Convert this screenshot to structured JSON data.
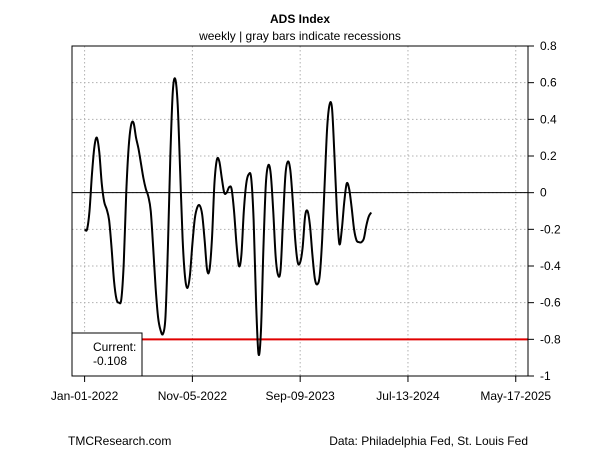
{
  "chart_data": {
    "type": "line",
    "title": "ADS Index",
    "subtitle": "weekly | gray bars indicate recessions",
    "xlabel": "",
    "ylabel": "",
    "x_tick_labels": [
      "Jan-01-2022",
      "Nov-05-2022",
      "Sep-09-2023",
      "Jul-13-2024",
      "May-17-2025"
    ],
    "x_tick_dates": [
      "2022-01-01",
      "2022-11-05",
      "2023-09-09",
      "2024-07-13",
      "2025-05-17"
    ],
    "xlim": [
      "2021-11-26",
      "2025-06-21"
    ],
    "ylim": [
      -1,
      0.8
    ],
    "y_ticks": [
      -1,
      -0.8,
      -0.6,
      -0.4,
      -0.2,
      0,
      0.2,
      0.4,
      0.6,
      0.8
    ],
    "y_tick_labels": [
      "-1",
      "-0.8",
      "-0.6",
      "-0.4",
      "-0.2",
      "0",
      "0.2",
      "0.4",
      "0.6",
      "0.8"
    ],
    "y_axis_side": "right",
    "grid": true,
    "reference_lines": [
      {
        "value": 0,
        "color": "#000000"
      },
      {
        "value": -0.8,
        "color": "#e00000"
      }
    ],
    "current_label": "Current:",
    "current_value": "-0.108",
    "series": [
      {
        "color": "#000000",
        "points": [
          [
            "2022-01-01",
            -0.2
          ],
          [
            "2022-01-08",
            -0.2
          ],
          [
            "2022-01-15",
            -0.1
          ],
          [
            "2022-01-22",
            0.1
          ],
          [
            "2022-01-29",
            0.25
          ],
          [
            "2022-02-05",
            0.3
          ],
          [
            "2022-02-12",
            0.22
          ],
          [
            "2022-02-19",
            0.05
          ],
          [
            "2022-02-26",
            -0.05
          ],
          [
            "2022-03-05",
            -0.09
          ],
          [
            "2022-03-12",
            -0.15
          ],
          [
            "2022-03-19",
            -0.3
          ],
          [
            "2022-03-26",
            -0.48
          ],
          [
            "2022-04-02",
            -0.58
          ],
          [
            "2022-04-09",
            -0.6
          ],
          [
            "2022-04-16",
            -0.58
          ],
          [
            "2022-04-23",
            -0.38
          ],
          [
            "2022-04-30",
            0.0
          ],
          [
            "2022-05-07",
            0.25
          ],
          [
            "2022-05-14",
            0.37
          ],
          [
            "2022-05-21",
            0.38
          ],
          [
            "2022-05-28",
            0.3
          ],
          [
            "2022-06-04",
            0.24
          ],
          [
            "2022-06-11",
            0.16
          ],
          [
            "2022-06-18",
            0.08
          ],
          [
            "2022-06-25",
            0.02
          ],
          [
            "2022-07-02",
            -0.02
          ],
          [
            "2022-07-09",
            -0.1
          ],
          [
            "2022-07-16",
            -0.3
          ],
          [
            "2022-07-23",
            -0.52
          ],
          [
            "2022-07-30",
            -0.68
          ],
          [
            "2022-08-06",
            -0.75
          ],
          [
            "2022-08-13",
            -0.77
          ],
          [
            "2022-08-20",
            -0.68
          ],
          [
            "2022-08-27",
            -0.3
          ],
          [
            "2022-09-03",
            0.2
          ],
          [
            "2022-09-10",
            0.55
          ],
          [
            "2022-09-17",
            0.62
          ],
          [
            "2022-09-24",
            0.48
          ],
          [
            "2022-10-01",
            0.12
          ],
          [
            "2022-10-08",
            -0.25
          ],
          [
            "2022-10-15",
            -0.46
          ],
          [
            "2022-10-22",
            -0.52
          ],
          [
            "2022-10-29",
            -0.45
          ],
          [
            "2022-11-05",
            -0.28
          ],
          [
            "2022-11-12",
            -0.14
          ],
          [
            "2022-11-19",
            -0.08
          ],
          [
            "2022-11-26",
            -0.07
          ],
          [
            "2022-12-03",
            -0.12
          ],
          [
            "2022-12-10",
            -0.26
          ],
          [
            "2022-12-17",
            -0.42
          ],
          [
            "2022-12-24",
            -0.42
          ],
          [
            "2022-12-31",
            -0.25
          ],
          [
            "2023-01-07",
            0.05
          ],
          [
            "2023-01-14",
            0.18
          ],
          [
            "2023-01-21",
            0.17
          ],
          [
            "2023-01-28",
            0.08
          ],
          [
            "2023-02-04",
            0.0
          ],
          [
            "2023-02-11",
            0.0
          ],
          [
            "2023-02-18",
            0.03
          ],
          [
            "2023-02-25",
            0.02
          ],
          [
            "2023-03-04",
            -0.1
          ],
          [
            "2023-03-11",
            -0.28
          ],
          [
            "2023-03-18",
            -0.4
          ],
          [
            "2023-03-25",
            -0.34
          ],
          [
            "2023-04-01",
            -0.1
          ],
          [
            "2023-04-08",
            0.05
          ],
          [
            "2023-04-15",
            0.1
          ],
          [
            "2023-04-22",
            0.08
          ],
          [
            "2023-04-29",
            -0.15
          ],
          [
            "2023-05-06",
            -0.6
          ],
          [
            "2023-05-13",
            -0.88
          ],
          [
            "2023-05-20",
            -0.75
          ],
          [
            "2023-05-27",
            -0.3
          ],
          [
            "2023-06-03",
            0.05
          ],
          [
            "2023-06-10",
            0.15
          ],
          [
            "2023-06-17",
            0.1
          ],
          [
            "2023-06-24",
            -0.1
          ],
          [
            "2023-07-01",
            -0.35
          ],
          [
            "2023-07-08",
            -0.45
          ],
          [
            "2023-07-15",
            -0.42
          ],
          [
            "2023-07-22",
            -0.15
          ],
          [
            "2023-07-29",
            0.1
          ],
          [
            "2023-08-05",
            0.17
          ],
          [
            "2023-08-12",
            0.12
          ],
          [
            "2023-08-19",
            -0.05
          ],
          [
            "2023-08-26",
            -0.26
          ],
          [
            "2023-09-02",
            -0.38
          ],
          [
            "2023-09-09",
            -0.38
          ],
          [
            "2023-09-16",
            -0.3
          ],
          [
            "2023-09-23",
            -0.13
          ],
          [
            "2023-09-30",
            -0.1
          ],
          [
            "2023-10-07",
            -0.18
          ],
          [
            "2023-10-14",
            -0.34
          ],
          [
            "2023-10-21",
            -0.47
          ],
          [
            "2023-10-28",
            -0.5
          ],
          [
            "2023-11-04",
            -0.45
          ],
          [
            "2023-11-11",
            -0.25
          ],
          [
            "2023-11-18",
            0.05
          ],
          [
            "2023-11-25",
            0.35
          ],
          [
            "2023-12-02",
            0.48
          ],
          [
            "2023-12-09",
            0.46
          ],
          [
            "2023-12-16",
            0.2
          ],
          [
            "2023-12-23",
            -0.1
          ],
          [
            "2023-12-30",
            -0.28
          ],
          [
            "2024-01-06",
            -0.2
          ],
          [
            "2024-01-13",
            -0.05
          ],
          [
            "2024-01-20",
            0.05
          ],
          [
            "2024-01-27",
            0.02
          ],
          [
            "2024-02-03",
            -0.08
          ],
          [
            "2024-02-10",
            -0.2
          ],
          [
            "2024-02-17",
            -0.26
          ],
          [
            "2024-02-24",
            -0.27
          ],
          [
            "2024-03-02",
            -0.27
          ],
          [
            "2024-03-09",
            -0.25
          ],
          [
            "2024-03-16",
            -0.18
          ],
          [
            "2024-03-23",
            -0.13
          ],
          [
            "2024-03-30",
            -0.108
          ]
        ]
      }
    ]
  },
  "footer": {
    "left": "TMCResearch.com",
    "right": "Data: Philadelphia Fed, St. Louis Fed"
  },
  "style": {
    "series_color": "#000000",
    "reference_color": "#e00000",
    "grid_color": "#b0b0b0"
  }
}
